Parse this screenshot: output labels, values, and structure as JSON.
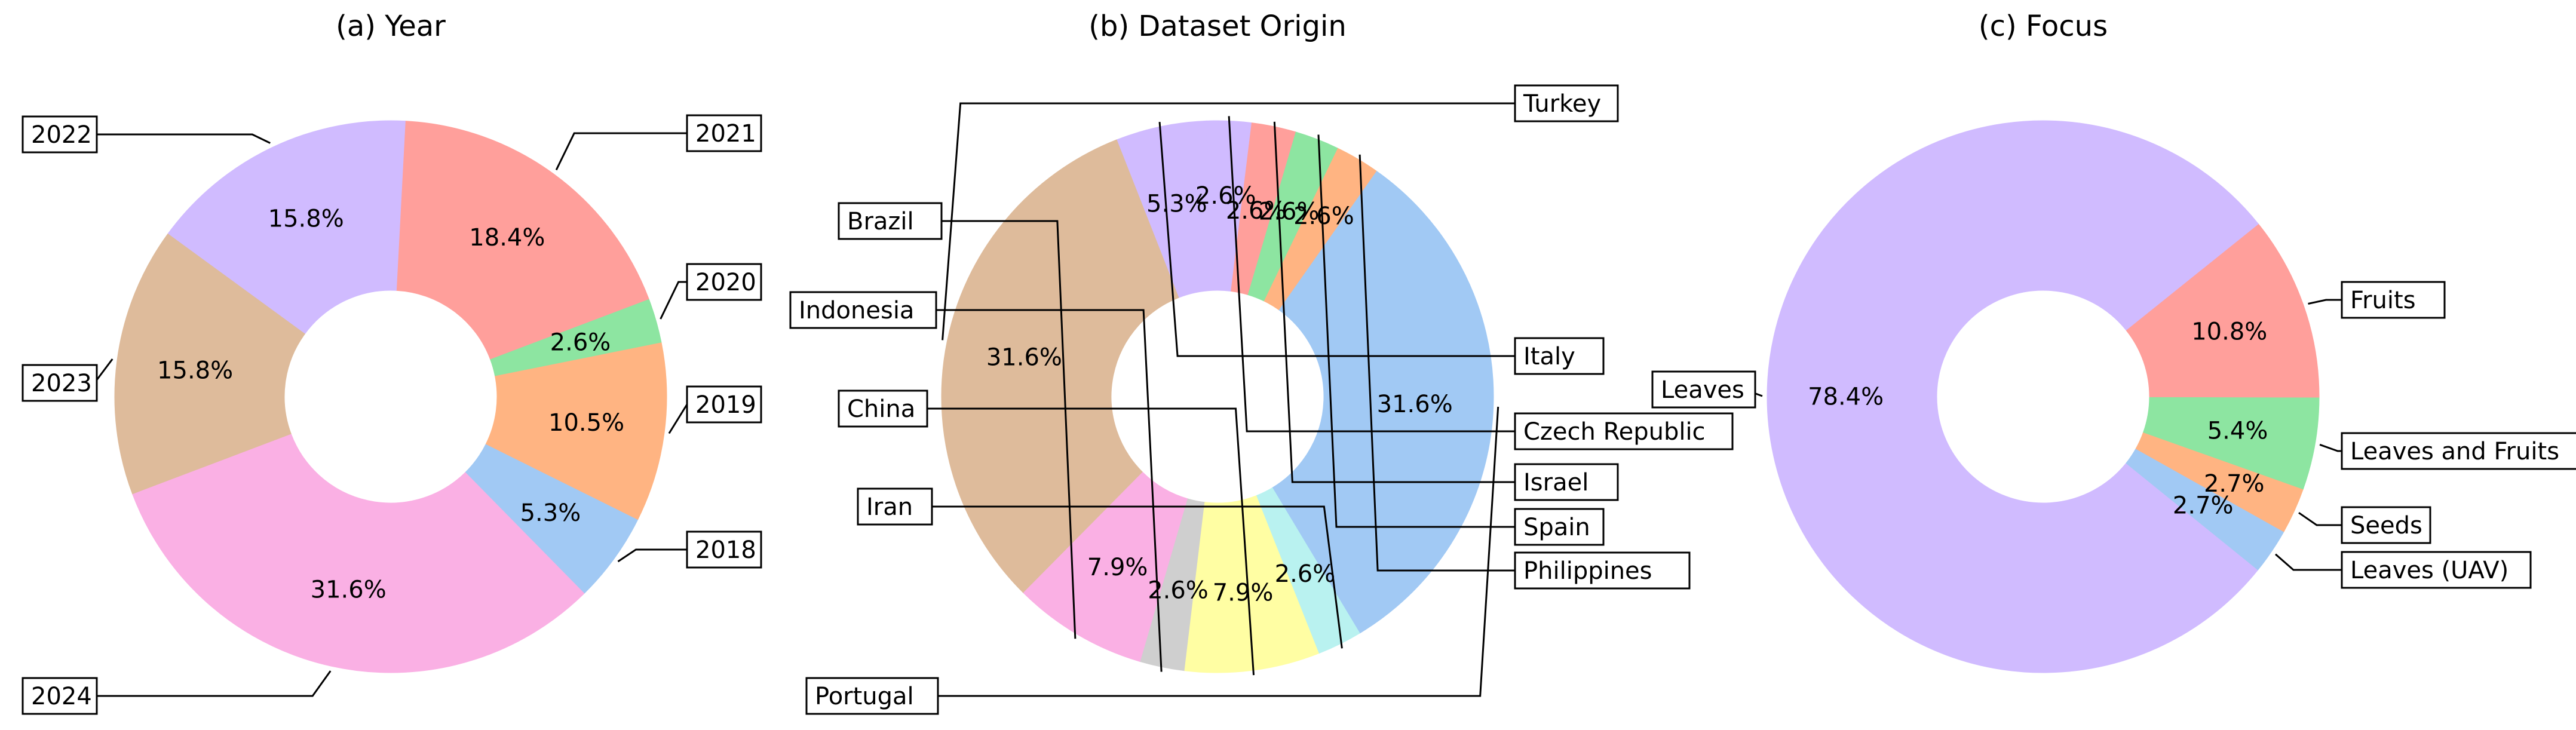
{
  "chart_data": [
    {
      "type": "pie",
      "title": "(a) Year",
      "slices": [
        {
          "label": "2018",
          "value": 5.3,
          "pct": "5.3%",
          "color": "#a1c9f4"
        },
        {
          "label": "2019",
          "value": 10.5,
          "pct": "10.5%",
          "color": "#ffb482"
        },
        {
          "label": "2020",
          "value": 2.6,
          "pct": "2.6%",
          "color": "#8de5a1"
        },
        {
          "label": "2021",
          "value": 18.4,
          "pct": "18.4%",
          "color": "#ff9f9b"
        },
        {
          "label": "2022",
          "value": 15.8,
          "pct": "15.8%",
          "color": "#d0bbff"
        },
        {
          "label": "2023",
          "value": 15.8,
          "pct": "15.8%",
          "color": "#debb9b"
        },
        {
          "label": "2024",
          "value": 31.6,
          "pct": "31.6%",
          "color": "#fab0e4"
        }
      ]
    },
    {
      "type": "pie",
      "title": "(b) Dataset Origin",
      "slices": [
        {
          "label": "Portugal",
          "value": 31.6,
          "pct": "31.6%",
          "color": "#a1c9f4"
        },
        {
          "label": "Philippines",
          "value": 2.6,
          "pct": "2.6%",
          "color": "#ffb482"
        },
        {
          "label": "Spain",
          "value": 2.6,
          "pct": "2.6%",
          "color": "#8de5a1"
        },
        {
          "label": "Israel",
          "value": 2.6,
          "pct": "2.6%",
          "color": "#ff9f9b"
        },
        {
          "label": "Czech Republic",
          "value": 2.6,
          "pct": "2.6%",
          "color": "#d0bbff"
        },
        {
          "label": "Italy",
          "value": 5.3,
          "pct": "5.3%",
          "color": "#d0bbff"
        },
        {
          "label": "Turkey",
          "value": 31.6,
          "pct": "31.6%",
          "color": "#debb9b"
        },
        {
          "label": "Brazil",
          "value": 7.9,
          "pct": "7.9%",
          "color": "#fab0e4"
        },
        {
          "label": "Indonesia",
          "value": 2.6,
          "pct": "2.6%",
          "color": "#cfcfcf"
        },
        {
          "label": "China",
          "value": 7.9,
          "pct": "7.9%",
          "color": "#fffea3"
        },
        {
          "label": "Iran",
          "value": 2.6,
          "pct": "2.6%",
          "color": "#b9f2f0"
        }
      ]
    },
    {
      "type": "pie",
      "title": "(c) Focus",
      "slices": [
        {
          "label": "Leaves (UAV)",
          "value": 2.7,
          "pct": "2.7%",
          "color": "#a1c9f4"
        },
        {
          "label": "Seeds",
          "value": 2.7,
          "pct": "2.7%",
          "color": "#ffb482"
        },
        {
          "label": "Leaves and Fruits",
          "value": 5.4,
          "pct": "5.4%",
          "color": "#8de5a1"
        },
        {
          "label": "Fruits",
          "value": 10.8,
          "pct": "10.8%",
          "color": "#ff9f9b"
        },
        {
          "label": "Leaves",
          "value": 78.4,
          "pct": "78.4%",
          "color": "#d0bbff"
        }
      ]
    }
  ]
}
